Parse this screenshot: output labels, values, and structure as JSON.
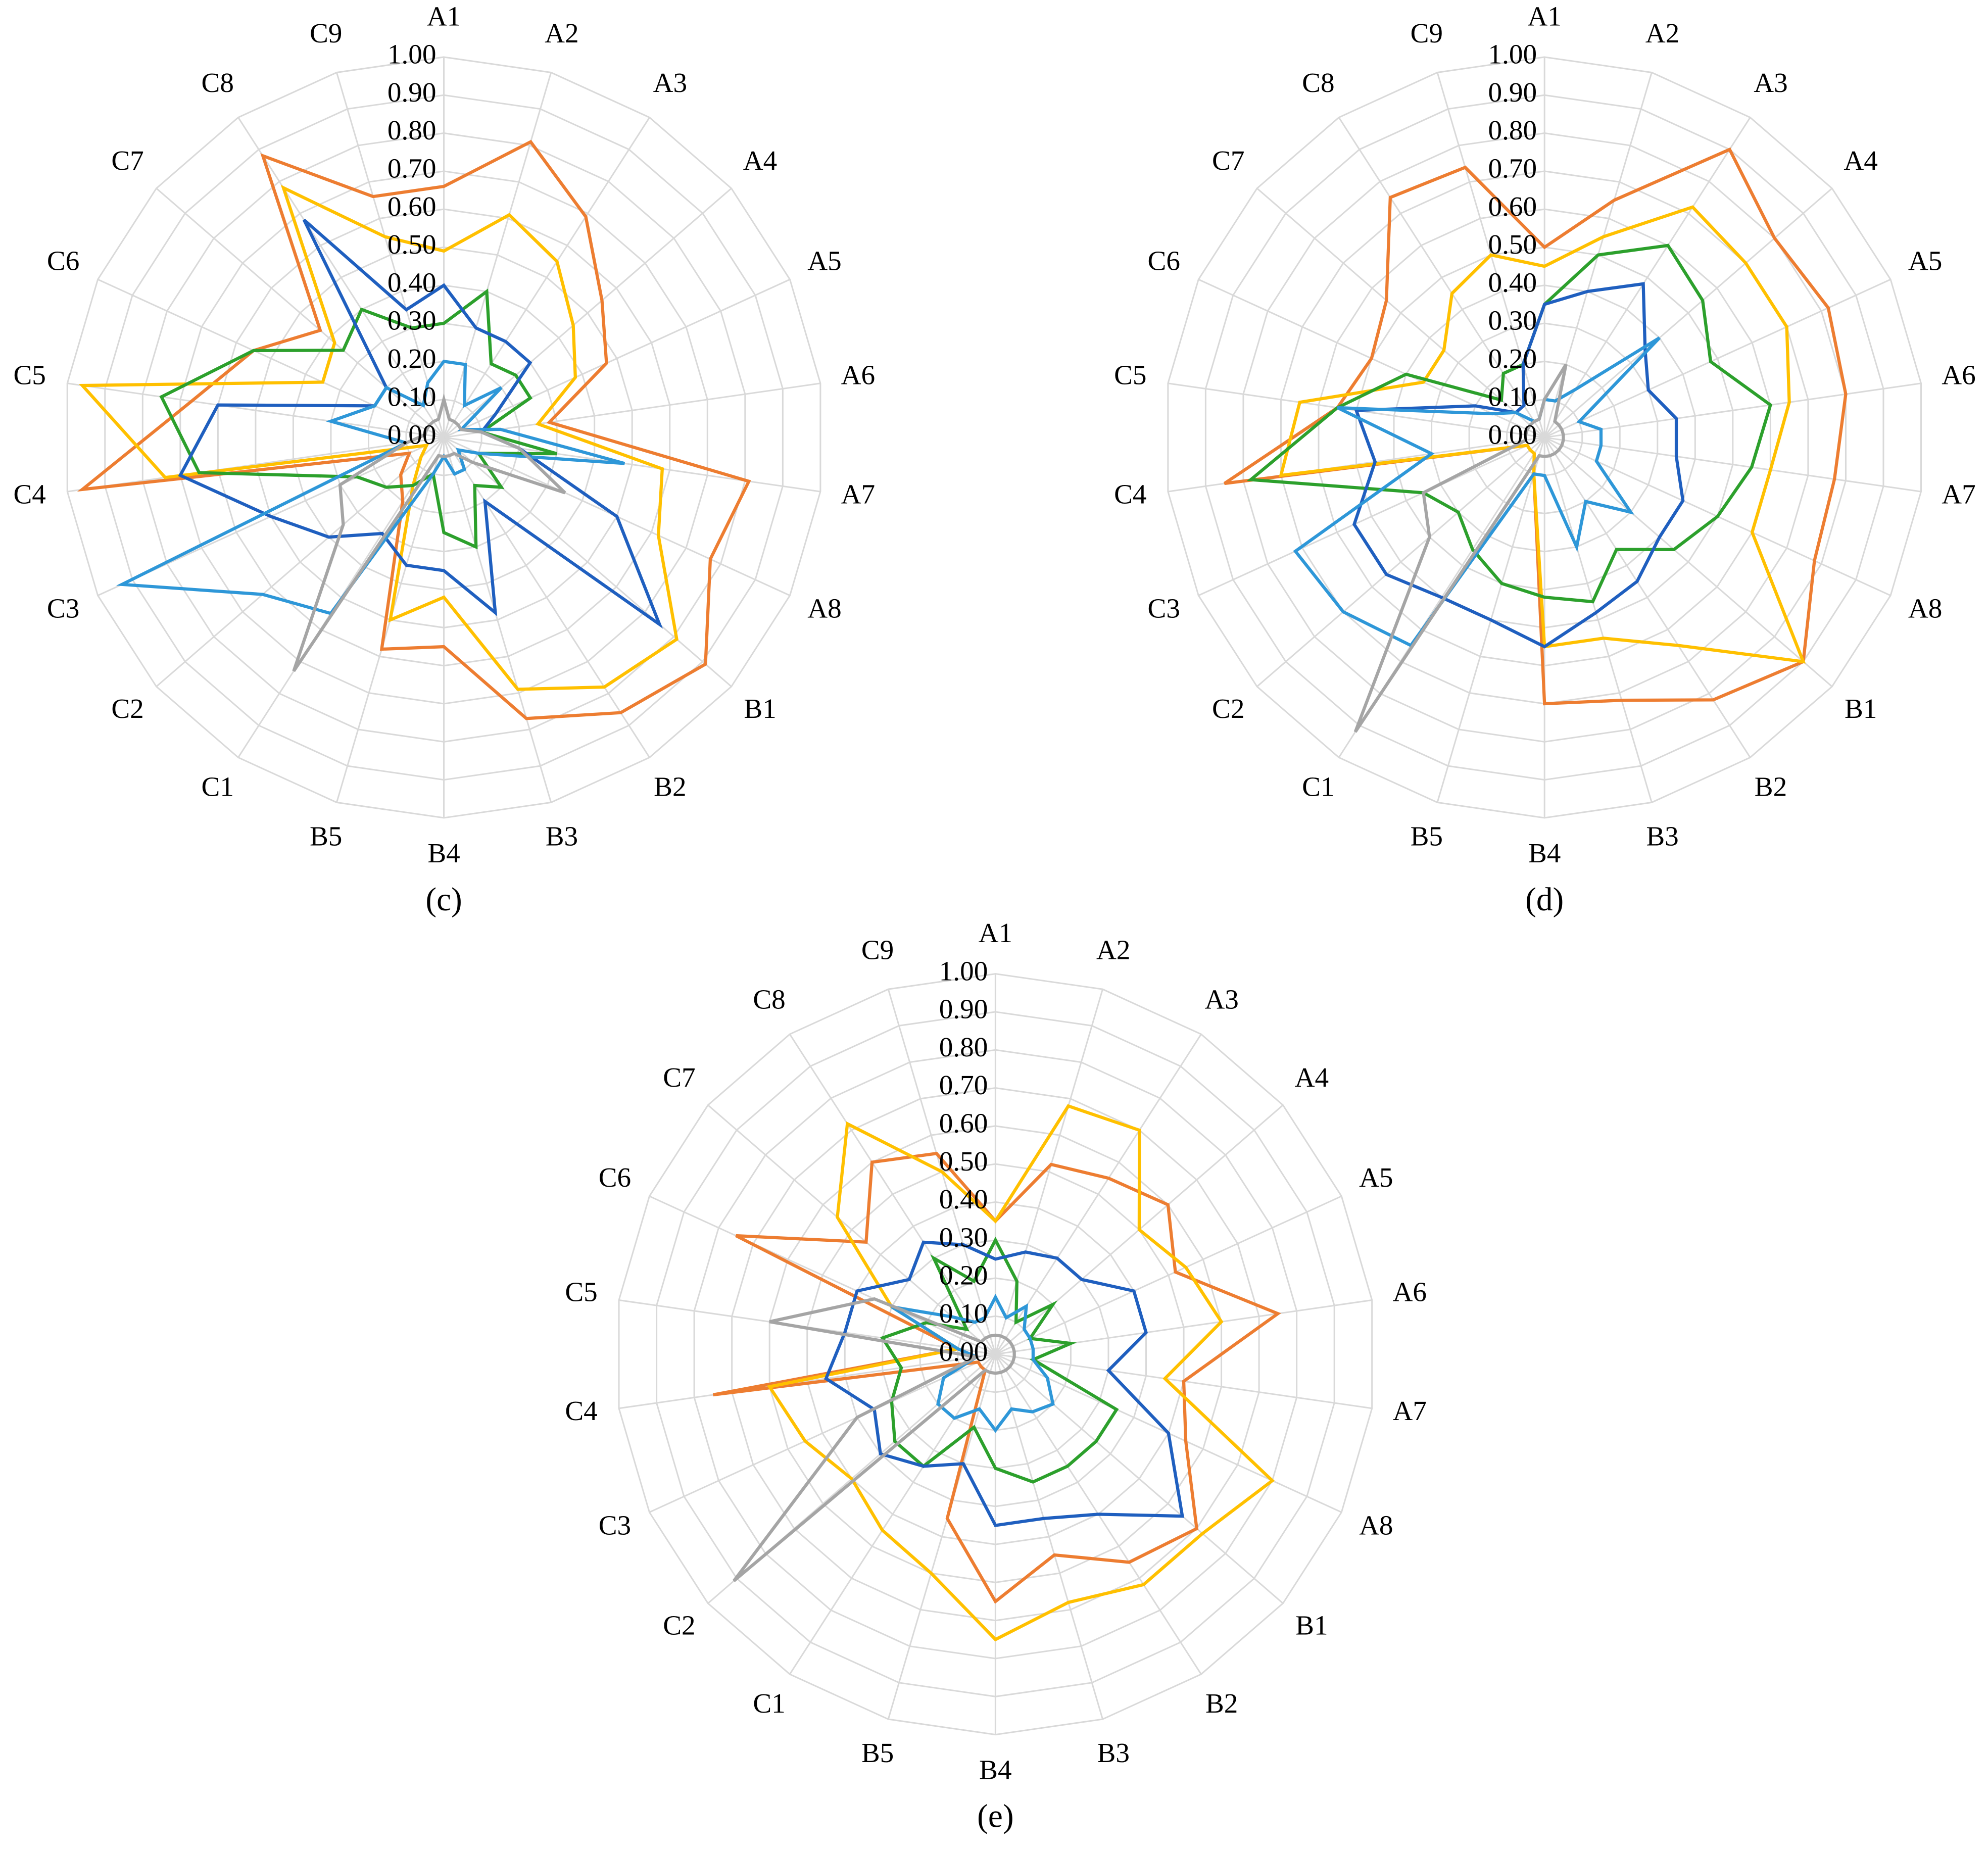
{
  "chart_data": [
    {
      "type": "radar",
      "title": "(c)",
      "categories": [
        "A1",
        "A2",
        "A3",
        "A4",
        "A5",
        "A6",
        "A7",
        "A8",
        "B1",
        "B2",
        "B3",
        "B4",
        "B5",
        "C1",
        "C2",
        "C3",
        "C4",
        "C5",
        "C6",
        "C7",
        "C8",
        "C9"
      ],
      "ylim": [
        0,
        1
      ],
      "yticks": [
        {
          "value": 0,
          "label": "0.00"
        },
        {
          "value": 0.1,
          "label": "0.10"
        },
        {
          "value": 0.2,
          "label": "0.20"
        },
        {
          "value": 0.3,
          "label": "0.30"
        },
        {
          "value": 0.4,
          "label": "0.40"
        },
        {
          "value": 0.5,
          "label": "0.50"
        },
        {
          "value": 0.6,
          "label": "0.60"
        },
        {
          "value": 0.7,
          "label": "0.70"
        },
        {
          "value": 0.8,
          "label": "0.80"
        },
        {
          "value": 0.9,
          "label": "0.90"
        },
        {
          "value": 1,
          "label": "1.00"
        }
      ],
      "grid": true,
      "series": [
        {
          "color": "#ED7D31",
          "values": [
            0.66,
            0.81,
            0.69,
            0.55,
            0.47,
            0.28,
            0.81,
            0.77,
            0.91,
            0.86,
            0.77,
            0.55,
            0.58,
            0.2,
            0.15,
            0.1,
            0.96,
            0.67,
            0.55,
            0.43,
            0.88,
            0.66
          ]
        },
        {
          "color": "#FFC000",
          "values": [
            0.49,
            0.61,
            0.55,
            0.45,
            0.38,
            0.25,
            0.58,
            0.62,
            0.81,
            0.78,
            0.69,
            0.42,
            0.5,
            0.15,
            0.08,
            0.05,
            0.74,
            0.96,
            0.35,
            0.38,
            0.78,
            0.55
          ]
        },
        {
          "color": "#2CA02C",
          "values": [
            0.3,
            0.4,
            0.23,
            0.25,
            0.25,
            0.1,
            0.3,
            0.1,
            0.2,
            0.15,
            0.3,
            0.25,
            0.1,
            0.15,
            0.2,
            0.25,
            0.65,
            0.75,
            0.55,
            0.35,
            0.4,
            0.3
          ]
        },
        {
          "color": "#1F5FBF",
          "values": [
            0.4,
            0.3,
            0.3,
            0.3,
            0.15,
            0.1,
            0.2,
            0.5,
            0.75,
            0.2,
            0.48,
            0.35,
            0.35,
            0.3,
            0.4,
            0.5,
            0.7,
            0.6,
            0.2,
            0.2,
            0.68,
            0.35
          ]
        },
        {
          "color": "#2E97D8",
          "values": [
            0.2,
            0.2,
            0.1,
            0.2,
            0.05,
            0.15,
            0.48,
            0.1,
            0.05,
            0.1,
            0.1,
            0.05,
            0.1,
            0.55,
            0.63,
            0.93,
            0.1,
            0.3,
            0.2,
            0.2,
            0.1,
            0.15
          ]
        },
        {
          "color": "#A5A5A5",
          "values": [
            0.1,
            0.05,
            0.05,
            0.05,
            0.05,
            0.1,
            0.2,
            0.35,
            0.1,
            0.05,
            0.05,
            0.05,
            0.05,
            0.73,
            0.35,
            0.3,
            0.1,
            0.05,
            0.05,
            0.05,
            0.05,
            0.05
          ]
        }
      ]
    },
    {
      "type": "radar",
      "title": "(d)",
      "categories": [
        "A1",
        "A2",
        "A3",
        "A4",
        "A5",
        "A6",
        "A7",
        "A8",
        "B1",
        "B2",
        "B3",
        "B4",
        "B5",
        "C1",
        "C2",
        "C3",
        "C4",
        "C5",
        "C6",
        "C7",
        "C8",
        "C9"
      ],
      "ylim": [
        0,
        1
      ],
      "yticks": [
        {
          "value": 0,
          "label": "0.00"
        },
        {
          "value": 0.1,
          "label": "0.10"
        },
        {
          "value": 0.2,
          "label": "0.20"
        },
        {
          "value": 0.3,
          "label": "0.30"
        },
        {
          "value": 0.4,
          "label": "0.40"
        },
        {
          "value": 0.5,
          "label": "0.50"
        },
        {
          "value": 0.6,
          "label": "0.60"
        },
        {
          "value": 0.7,
          "label": "0.70"
        },
        {
          "value": 0.8,
          "label": "0.80"
        },
        {
          "value": 0.9,
          "label": "0.90"
        },
        {
          "value": 1,
          "label": "1.00"
        }
      ],
      "grid": true,
      "series": [
        {
          "color": "#ED7D31",
          "values": [
            0.5,
            0.65,
            0.9,
            0.8,
            0.82,
            0.8,
            0.77,
            0.78,
            0.9,
            0.82,
            0.72,
            0.7,
            0.1,
            0.05,
            0.05,
            0.05,
            0.85,
            0.55,
            0.5,
            0.55,
            0.75,
            0.74
          ]
        },
        {
          "color": "#FFC000",
          "values": [
            0.45,
            0.55,
            0.72,
            0.7,
            0.7,
            0.65,
            0.6,
            0.6,
            0.9,
            0.65,
            0.55,
            0.55,
            0.1,
            0.05,
            0.05,
            0.05,
            0.7,
            0.65,
            0.35,
            0.35,
            0.45,
            0.5
          ]
        },
        {
          "color": "#2CA02C",
          "values": [
            0.35,
            0.5,
            0.6,
            0.55,
            0.48,
            0.6,
            0.55,
            0.5,
            0.45,
            0.35,
            0.45,
            0.42,
            0.4,
            0.35,
            0.3,
            0.35,
            0.78,
            0.55,
            0.4,
            0.15,
            0.2,
            0.2
          ]
        },
        {
          "color": "#1F5FBF",
          "values": [
            0.35,
            0.4,
            0.48,
            0.35,
            0.3,
            0.35,
            0.35,
            0.4,
            0.4,
            0.45,
            0.48,
            0.55,
            0.5,
            0.5,
            0.55,
            0.55,
            0.45,
            0.5,
            0.2,
            0.1,
            0.1,
            0.2
          ]
        },
        {
          "color": "#2E97D8",
          "values": [
            0.1,
            0.1,
            0.15,
            0.4,
            0.1,
            0.15,
            0.15,
            0.15,
            0.3,
            0.2,
            0.3,
            0.1,
            0.1,
            0.65,
            0.7,
            0.72,
            0.3,
            0.55,
            0.15,
            0.1,
            0.05,
            0.05
          ]
        },
        {
          "color": "#A5A5A5",
          "values": [
            0.1,
            0.2,
            0.05,
            0.05,
            0.05,
            0.05,
            0.05,
            0.05,
            0.05,
            0.05,
            0.05,
            0.05,
            0.05,
            0.92,
            0.4,
            0.35,
            0.05,
            0.05,
            0.05,
            0.05,
            0.05,
            0.05
          ]
        }
      ]
    },
    {
      "type": "radar",
      "title": "(e)",
      "categories": [
        "A1",
        "A2",
        "A3",
        "A4",
        "A5",
        "A6",
        "A7",
        "A8",
        "B1",
        "B2",
        "B3",
        "B4",
        "B5",
        "C1",
        "C2",
        "C3",
        "C4",
        "C5",
        "C6",
        "C7",
        "C8",
        "C9"
      ],
      "ylim": [
        0,
        1
      ],
      "yticks": [
        {
          "value": 0,
          "label": "0.00"
        },
        {
          "value": 0.1,
          "label": "0.10"
        },
        {
          "value": 0.2,
          "label": "0.20"
        },
        {
          "value": 0.3,
          "label": "0.30"
        },
        {
          "value": 0.4,
          "label": "0.40"
        },
        {
          "value": 0.5,
          "label": "0.50"
        },
        {
          "value": 0.6,
          "label": "0.60"
        },
        {
          "value": 0.7,
          "label": "0.70"
        },
        {
          "value": 0.8,
          "label": "0.80"
        },
        {
          "value": 0.9,
          "label": "0.90"
        },
        {
          "value": 1,
          "label": "1.00"
        }
      ],
      "grid": true,
      "series": [
        {
          "color": "#ED7D31",
          "values": [
            0.35,
            0.52,
            0.55,
            0.6,
            0.52,
            0.75,
            0.5,
            0.55,
            0.7,
            0.65,
            0.55,
            0.65,
            0.45,
            0.05,
            0.05,
            0.05,
            0.75,
            0.1,
            0.75,
            0.45,
            0.6,
            0.55
          ]
        },
        {
          "color": "#FFC000",
          "values": [
            0.35,
            0.68,
            0.7,
            0.5,
            0.55,
            0.6,
            0.45,
            0.8,
            0.72,
            0.72,
            0.68,
            0.75,
            0.6,
            0.55,
            0.5,
            0.55,
            0.6,
            0.1,
            0.3,
            0.55,
            0.72,
            0.5
          ]
        },
        {
          "color": "#2CA02C",
          "values": [
            0.3,
            0.2,
            0.1,
            0.2,
            0.1,
            0.2,
            0.1,
            0.35,
            0.35,
            0.35,
            0.35,
            0.3,
            0.2,
            0.35,
            0.35,
            0.3,
            0.25,
            0.3,
            0.2,
            0.1,
            0.3,
            0.2
          ]
        },
        {
          "color": "#1F5FBF",
          "values": [
            0.25,
            0.28,
            0.3,
            0.3,
            0.4,
            0.4,
            0.3,
            0.5,
            0.65,
            0.5,
            0.45,
            0.45,
            0.3,
            0.35,
            0.4,
            0.35,
            0.45,
            0.4,
            0.4,
            0.3,
            0.35,
            0.3
          ]
        },
        {
          "color": "#2E97D8",
          "values": [
            0.15,
            0.1,
            0.15,
            0.1,
            0.1,
            0.1,
            0.1,
            0.15,
            0.2,
            0.18,
            0.15,
            0.2,
            0.15,
            0.2,
            0.2,
            0.15,
            0.05,
            0.1,
            0.3,
            0.15,
            0.1,
            0.1
          ]
        },
        {
          "color": "#A5A5A5",
          "values": [
            0.05,
            0.05,
            0.05,
            0.05,
            0.05,
            0.05,
            0.05,
            0.05,
            0.05,
            0.05,
            0.05,
            0.05,
            0.05,
            0.05,
            0.91,
            0.4,
            0.05,
            0.6,
            0.35,
            0.05,
            0.05,
            0.05
          ]
        }
      ]
    }
  ]
}
